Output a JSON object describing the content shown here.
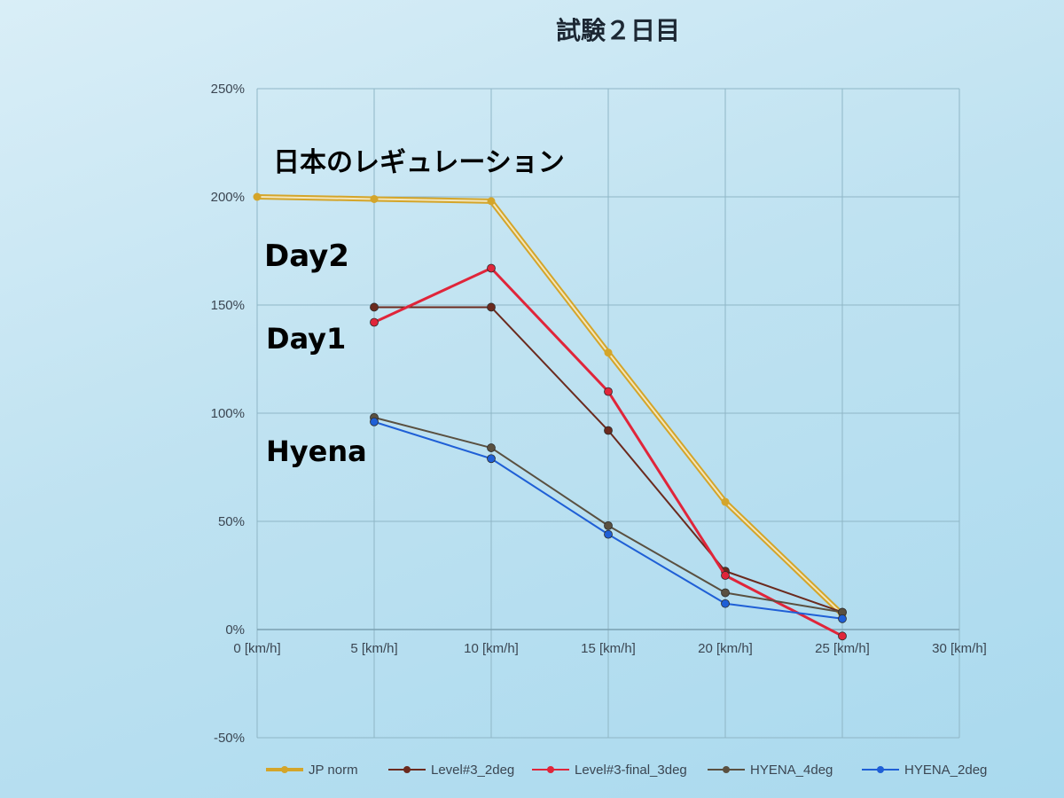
{
  "chart_data": {
    "type": "line",
    "title": "試験２日目",
    "x": [
      "0 [km/h]",
      "5 [km/h]",
      "10 [km/h]",
      "15 [km/h]",
      "20 [km/h]",
      "25 [km/h]",
      "30 [km/h]"
    ],
    "y_ticks": [
      "250%",
      "200%",
      "150%",
      "100%",
      "50%",
      "0%",
      "-50%"
    ],
    "ylim": [
      -50,
      250
    ],
    "grid": true,
    "legend_position": "bottom",
    "series": [
      {
        "name": "JP norm",
        "color": "#d4a52a",
        "values": [
          200,
          199,
          198,
          128,
          59,
          7,
          null
        ]
      },
      {
        "name": "Level#3_2deg",
        "color": "#6b2a1e",
        "values": [
          null,
          149,
          149,
          92,
          27,
          8,
          null
        ]
      },
      {
        "name": "Level#3-final_3deg",
        "color": "#e0253a",
        "values": [
          null,
          142,
          167,
          110,
          25,
          -3,
          null
        ]
      },
      {
        "name": "HYENA_4deg",
        "color": "#5a5040",
        "values": [
          null,
          98,
          84,
          48,
          17,
          8,
          null
        ]
      },
      {
        "name": "HYENA_2deg",
        "color": "#1f5fd6",
        "values": [
          null,
          96,
          79,
          44,
          12,
          5,
          null
        ]
      }
    ],
    "annotations": [
      {
        "text": "日本のレギュレーション",
        "color": "#1c2733"
      },
      {
        "text": "Day2",
        "color": "#e0253a"
      },
      {
        "text": "Day1",
        "color": "#1c2733"
      },
      {
        "text": "Hyena",
        "color": "#1c2733"
      }
    ]
  }
}
